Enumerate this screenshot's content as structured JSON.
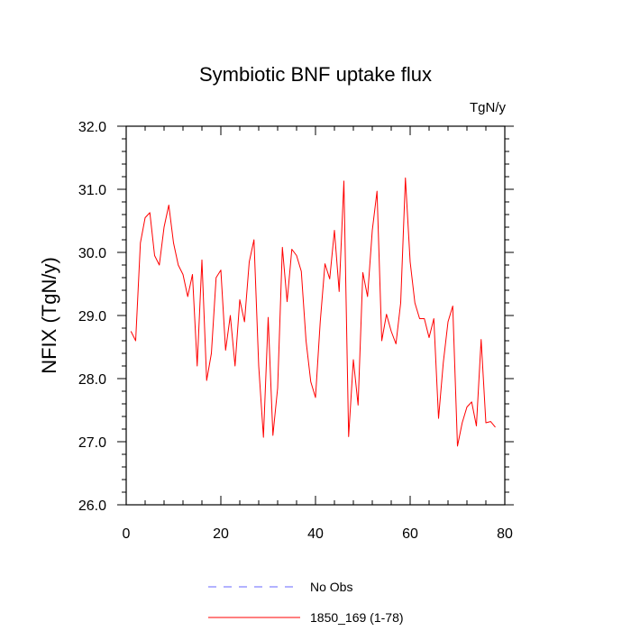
{
  "chart_data": {
    "type": "line",
    "title": "Symbiotic BNF uptake flux",
    "units": "TgN/y",
    "ylabel": "NFIX  (TgN/y)",
    "xlabel": "",
    "xlim": [
      0,
      80
    ],
    "ylim": [
      26.0,
      32.0
    ],
    "x_ticks": [
      0,
      20,
      40,
      60,
      80
    ],
    "x_tick_labels": [
      "0",
      "20",
      "40",
      "60",
      "80"
    ],
    "y_ticks": [
      26.0,
      27.0,
      28.0,
      29.0,
      30.0,
      31.0,
      32.0
    ],
    "y_tick_labels": [
      "26.0",
      "27.0",
      "28.0",
      "29.0",
      "30.0",
      "31.0",
      "32.0"
    ],
    "grid": false,
    "legend_position": "bottom",
    "legend": [
      {
        "label": "No Obs",
        "color": "#6666ff",
        "style": "dashed"
      },
      {
        "label": "1850_169 (1-78)",
        "color": "#ff0000",
        "style": "solid"
      }
    ],
    "series": [
      {
        "name": "1850_169 (1-78)",
        "color": "#ff0000",
        "x": [
          1,
          2,
          3,
          4,
          5,
          6,
          7,
          8,
          9,
          10,
          11,
          12,
          13,
          14,
          15,
          16,
          17,
          18,
          19,
          20,
          21,
          22,
          23,
          24,
          25,
          26,
          27,
          28,
          29,
          30,
          31,
          32,
          33,
          34,
          35,
          36,
          37,
          38,
          39,
          40,
          41,
          42,
          43,
          44,
          45,
          46,
          47,
          48,
          49,
          50,
          51,
          52,
          53,
          54,
          55,
          56,
          57,
          58,
          59,
          60,
          61,
          62,
          63,
          64,
          65,
          66,
          67,
          68,
          69,
          70,
          71,
          72,
          73,
          74,
          75,
          76,
          77,
          78
        ],
        "values": [
          28.75,
          28.6,
          30.15,
          30.55,
          30.63,
          29.95,
          29.8,
          30.4,
          30.75,
          30.15,
          29.8,
          29.65,
          29.3,
          29.65,
          28.2,
          29.88,
          27.97,
          28.4,
          29.6,
          29.72,
          28.45,
          29.0,
          28.2,
          29.25,
          28.9,
          29.85,
          30.2,
          28.2,
          27.07,
          28.97,
          27.1,
          27.85,
          30.08,
          29.22,
          30.05,
          29.95,
          29.7,
          28.6,
          27.95,
          27.7,
          28.9,
          29.82,
          29.58,
          30.35,
          29.38,
          31.13,
          27.08,
          28.3,
          27.58,
          29.68,
          29.3,
          30.35,
          30.97,
          28.6,
          29.02,
          28.75,
          28.55,
          29.2,
          31.18,
          29.85,
          29.2,
          28.95,
          28.95,
          28.65,
          28.95,
          27.37,
          28.25,
          28.9,
          29.15,
          26.93,
          27.3,
          27.55,
          27.63,
          27.25,
          28.62,
          27.3,
          27.32,
          27.23
        ]
      }
    ]
  }
}
